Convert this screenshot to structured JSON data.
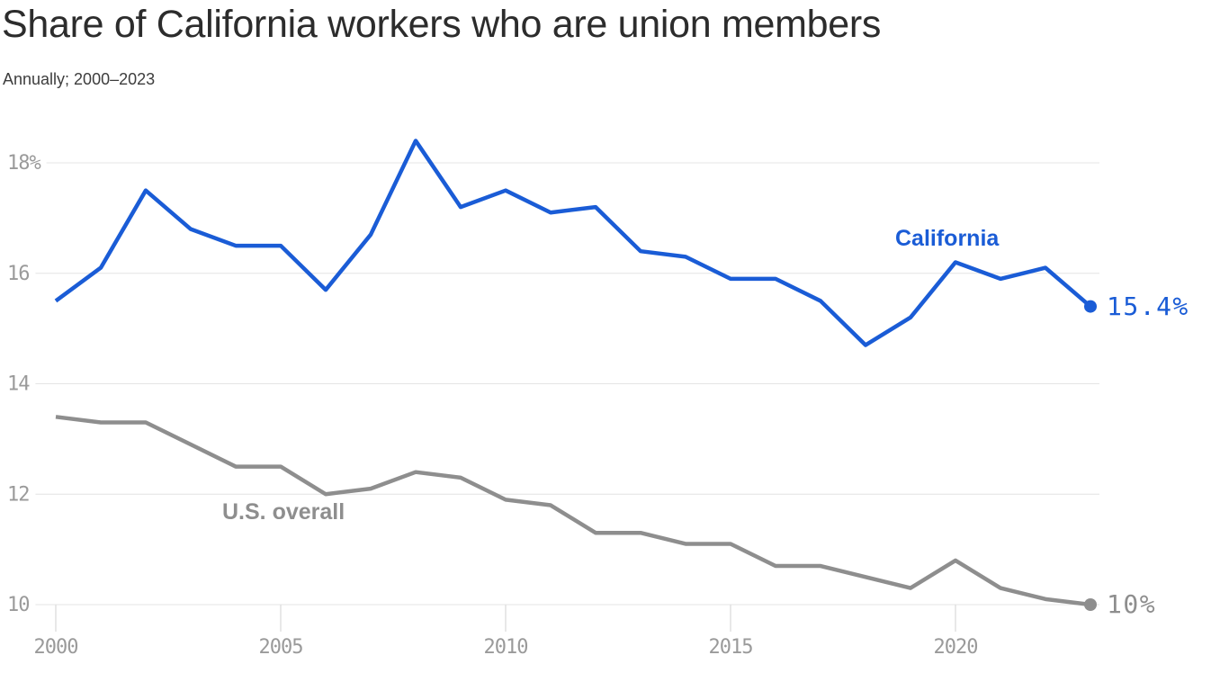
{
  "header": {
    "title": "Share of California workers who are union members",
    "subtitle": "Annually; 2000–2023"
  },
  "colors": {
    "california": "#1a5cd6",
    "us_overall": "#8e8e8e",
    "grid": "#e4e4e4",
    "tick_line": "#e0e0e0",
    "tick_text": "#9a9a9a",
    "title_text": "#2c2c2c"
  },
  "chart_data": {
    "type": "line",
    "title": "Share of California workers who are union members",
    "subtitle": "Annually; 2000–2023",
    "xlabel": "",
    "ylabel": "",
    "x": [
      2000,
      2001,
      2002,
      2003,
      2004,
      2005,
      2006,
      2007,
      2008,
      2009,
      2010,
      2011,
      2012,
      2013,
      2014,
      2015,
      2016,
      2017,
      2018,
      2019,
      2020,
      2021,
      2022,
      2023
    ],
    "series": [
      {
        "name": "California",
        "color": "#1a5cd6",
        "end_label": "15.4%",
        "values": [
          15.5,
          16.1,
          17.5,
          16.8,
          16.5,
          16.5,
          15.7,
          16.7,
          18.4,
          17.2,
          17.5,
          17.1,
          17.2,
          16.4,
          16.3,
          15.9,
          15.9,
          15.5,
          14.7,
          15.2,
          16.2,
          15.9,
          16.1,
          15.4
        ]
      },
      {
        "name": "U.S. overall",
        "color": "#8e8e8e",
        "end_label": "10%",
        "values": [
          13.4,
          13.3,
          13.3,
          12.9,
          12.5,
          12.5,
          12.0,
          12.1,
          12.4,
          12.3,
          11.9,
          11.8,
          11.3,
          11.3,
          11.1,
          11.1,
          10.7,
          10.7,
          10.5,
          10.3,
          10.8,
          10.3,
          10.1,
          10.0
        ]
      }
    ],
    "xticks": [
      2000,
      2005,
      2010,
      2015,
      2020
    ],
    "xtick_labels": [
      "2000",
      "2005",
      "2010",
      "2015",
      "2020"
    ],
    "yticks": [
      10,
      12,
      14,
      16,
      18
    ],
    "ytick_labels": [
      "10",
      "12",
      "14",
      "16",
      "18%"
    ],
    "xlim": [
      2000,
      2023
    ],
    "ylim": [
      10,
      18.8
    ],
    "grid": "horizontal",
    "legend_position": "inline-labels-and-end-values"
  }
}
